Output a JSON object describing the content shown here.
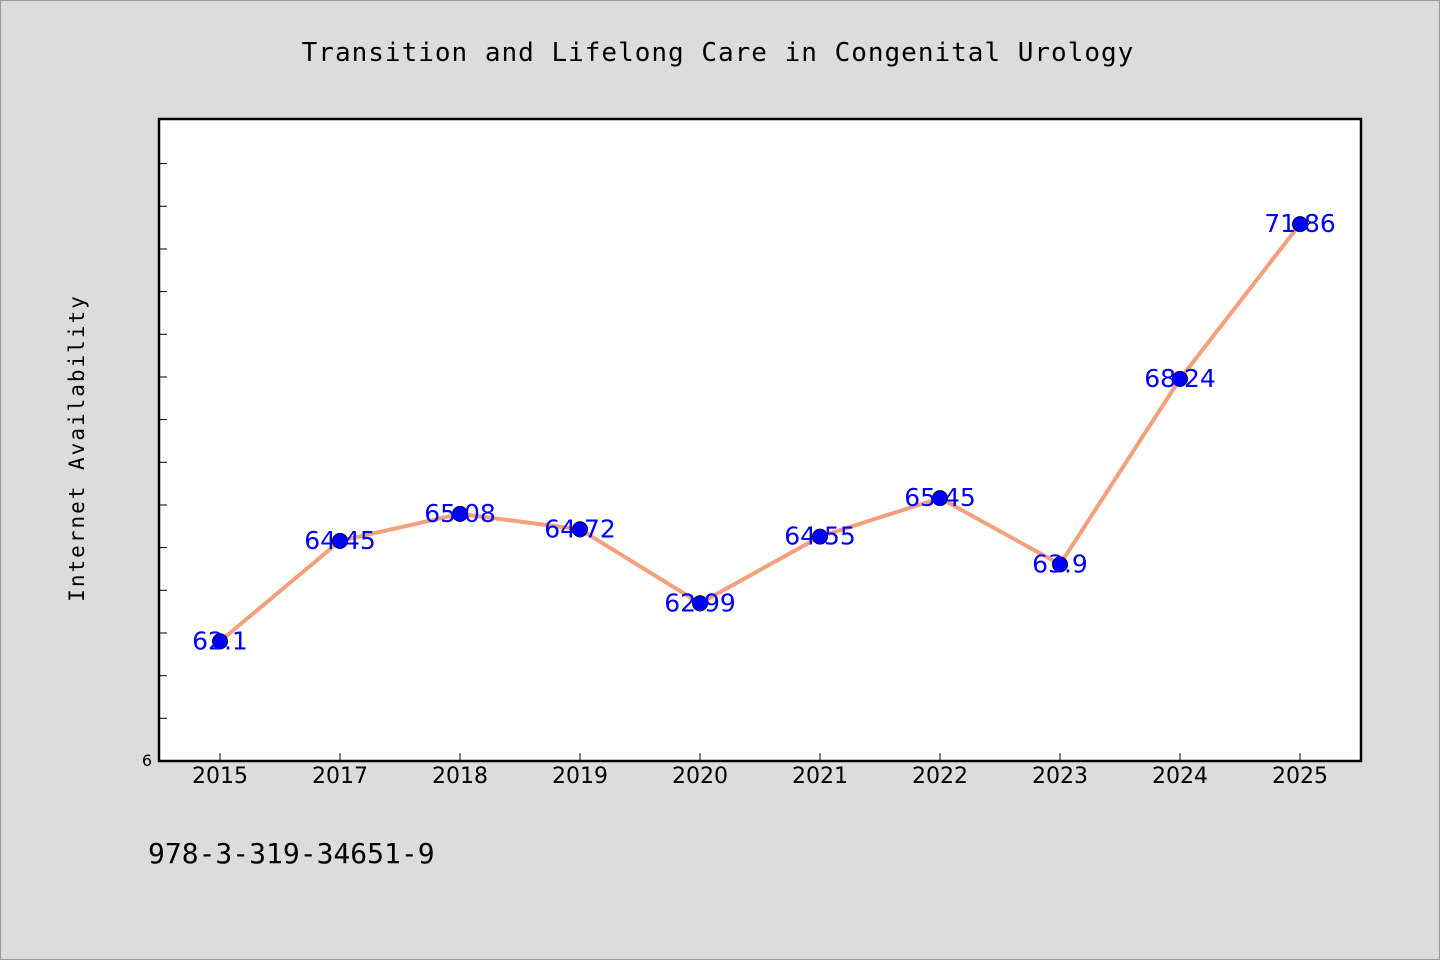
{
  "chart_data": {
    "type": "line",
    "title": "Transition and Lifelong Care in Congenital Urology",
    "xlabel": "",
    "ylabel": "Internet Availability",
    "categories": [
      "2015",
      "2017",
      "2018",
      "2019",
      "2020",
      "2021",
      "2022",
      "2023",
      "2024",
      "2025"
    ],
    "series": [
      {
        "values": [
          62.1,
          64.45,
          65.08,
          64.72,
          62.99,
          64.55,
          65.45,
          63.9,
          68.24,
          71.86
        ],
        "labels": [
          "62.1",
          "64.45",
          "65.08",
          "64.72",
          "62.99",
          "64.55",
          "65.45",
          "63.9",
          "68.24",
          "71.86"
        ]
      }
    ],
    "ylim": [
      59.3,
      74.32
    ],
    "ytick_labels": [
      "6"
    ],
    "grid": false,
    "line_color": "#f4a07c",
    "marker_color": "#0000ff",
    "label_color": "#0000ff"
  },
  "footer": {
    "isbn": "978-3-319-34651-9"
  },
  "colors": {
    "background": "#dcdcdc",
    "plot_background": "#ffffff"
  }
}
